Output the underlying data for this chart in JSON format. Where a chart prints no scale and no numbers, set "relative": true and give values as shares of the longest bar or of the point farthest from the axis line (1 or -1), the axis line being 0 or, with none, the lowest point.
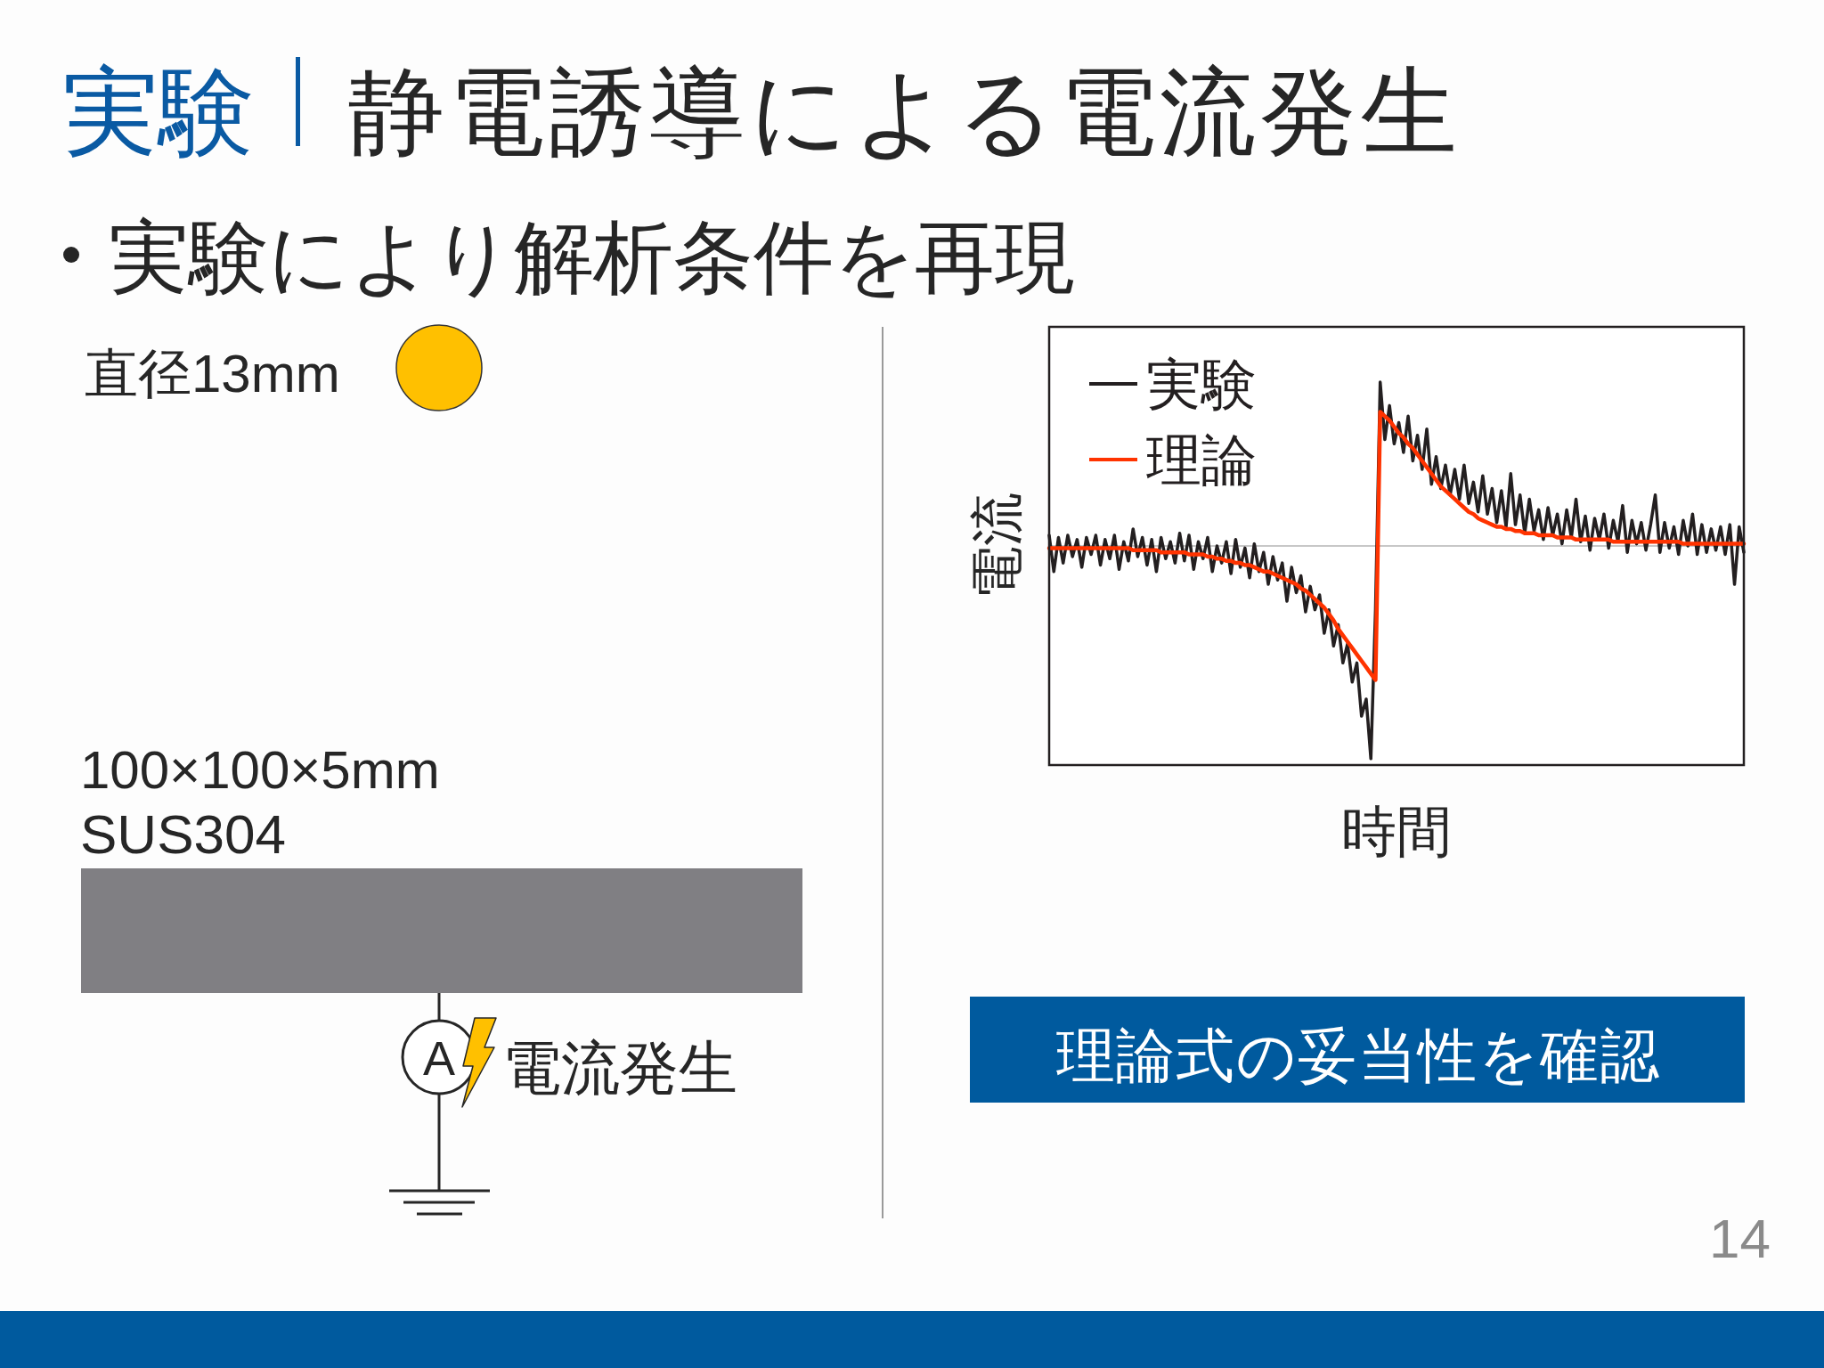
{
  "chart_data": {
    "type": "line",
    "title": "実験",
    "subtitle": "静電誘導による電流発生",
    "xlabel": "時間",
    "ylabel": "電流",
    "annotations": [
      "実験により解析条件を再現",
      "直径13mm",
      "100×100×5mm",
      "SUS304",
      "A",
      "電流発生",
      "理論式の妥当性を確認",
      "14"
    ],
    "relative": true,
    "legend": "top left",
    "categories": [
      null,
      null,
      null,
      null,
      null,
      null,
      null,
      null,
      null,
      null,
      null,
      null,
      null,
      null,
      null,
      null,
      null,
      null,
      null,
      null,
      null,
      null,
      null,
      null,
      null,
      null,
      null,
      null,
      null,
      null,
      null,
      null,
      null,
      null,
      null,
      null,
      null,
      null,
      null,
      null,
      null,
      null,
      null,
      null,
      null,
      null,
      null,
      null,
      null,
      null,
      null,
      null,
      null,
      null,
      null,
      null,
      null,
      null,
      null,
      null,
      null,
      null,
      null,
      null,
      null,
      null,
      null,
      null,
      null,
      null,
      null,
      null,
      null,
      null,
      null,
      null,
      null,
      null,
      null,
      null,
      null,
      null,
      null,
      null,
      null,
      null,
      null,
      null,
      null,
      null,
      null,
      null,
      null,
      null,
      null,
      null,
      null,
      null,
      null,
      null,
      null,
      null,
      null,
      null,
      null,
      null,
      null,
      null,
      null,
      null,
      null,
      null,
      null,
      null,
      null,
      null,
      null,
      null,
      null,
      null,
      null,
      null,
      null,
      null,
      null,
      null,
      null,
      null,
      null,
      null,
      null,
      null,
      null,
      null,
      null,
      null,
      null,
      null,
      null,
      null,
      null,
      null,
      null,
      null,
      null,
      null,
      null,
      null,
      null,
      null
    ],
    "series": [
      {
        "name": "実験",
        "color": "#231f20",
        "values": [
          0.05,
          -0.12,
          0.04,
          -0.08,
          0.05,
          -0.05,
          0.03,
          -0.1,
          0.04,
          -0.04,
          0.05,
          -0.09,
          0.03,
          -0.06,
          0.05,
          -0.11,
          0.02,
          -0.07,
          0.08,
          -0.05,
          0.04,
          -0.09,
          0.03,
          -0.12,
          0.04,
          -0.06,
          0.02,
          -0.08,
          0.06,
          -0.07,
          0.05,
          -0.11,
          0.02,
          -0.06,
          0.04,
          -0.12,
          0.0,
          -0.08,
          0.02,
          -0.13,
          0.03,
          -0.1,
          -0.01,
          -0.15,
          0.01,
          -0.12,
          -0.03,
          -0.18,
          -0.05,
          -0.16,
          -0.08,
          -0.26,
          -0.1,
          -0.22,
          -0.14,
          -0.31,
          -0.19,
          -0.3,
          -0.23,
          -0.41,
          -0.3,
          -0.47,
          -0.37,
          -0.55,
          -0.46,
          -0.64,
          -0.55,
          -0.8,
          -0.72,
          -1.0,
          -0.3,
          0.77,
          0.5,
          0.66,
          0.48,
          0.58,
          0.44,
          0.61,
          0.4,
          0.52,
          0.36,
          0.55,
          0.29,
          0.42,
          0.27,
          0.38,
          0.24,
          0.36,
          0.22,
          0.38,
          0.2,
          0.3,
          0.16,
          0.33,
          0.15,
          0.27,
          0.11,
          0.26,
          0.09,
          0.34,
          0.1,
          0.24,
          0.06,
          0.22,
          0.07,
          0.17,
          0.03,
          0.18,
          0.05,
          0.15,
          0.01,
          0.17,
          0.04,
          0.22,
          0.02,
          0.14,
          -0.02,
          0.13,
          0.03,
          0.15,
          -0.01,
          0.12,
          0.02,
          0.19,
          -0.03,
          0.12,
          0.01,
          0.11,
          -0.02,
          0.1,
          0.24,
          -0.03,
          0.11,
          -0.01,
          0.09,
          -0.04,
          0.12,
          0.0,
          0.15,
          -0.04,
          0.1,
          -0.03,
          0.08,
          -0.02,
          0.09,
          -0.04,
          0.1,
          -0.18,
          0.09,
          -0.03
        ]
      },
      {
        "name": "理論",
        "color": "#ff3300",
        "values": [
          -0.01,
          -0.01,
          -0.01,
          -0.01,
          -0.01,
          -0.01,
          -0.01,
          -0.01,
          -0.01,
          -0.01,
          -0.01,
          -0.01,
          -0.01,
          -0.01,
          -0.01,
          -0.01,
          -0.01,
          -0.01,
          -0.02,
          -0.02,
          -0.02,
          -0.02,
          -0.02,
          -0.02,
          -0.03,
          -0.03,
          -0.03,
          -0.03,
          -0.03,
          -0.03,
          -0.04,
          -0.04,
          -0.04,
          -0.04,
          -0.05,
          -0.05,
          -0.06,
          -0.06,
          -0.07,
          -0.07,
          -0.08,
          -0.08,
          -0.09,
          -0.09,
          -0.1,
          -0.11,
          -0.12,
          -0.12,
          -0.13,
          -0.14,
          -0.15,
          -0.16,
          -0.17,
          -0.18,
          -0.2,
          -0.21,
          -0.23,
          -0.25,
          -0.27,
          -0.29,
          -0.32,
          -0.35,
          -0.39,
          -0.42,
          -0.45,
          -0.48,
          -0.51,
          -0.54,
          -0.57,
          -0.6,
          -0.63,
          0.63,
          0.61,
          0.59,
          0.56,
          0.53,
          0.51,
          0.48,
          0.46,
          0.43,
          0.4,
          0.37,
          0.34,
          0.31,
          0.28,
          0.26,
          0.24,
          0.22,
          0.2,
          0.18,
          0.16,
          0.15,
          0.13,
          0.12,
          0.11,
          0.1,
          0.09,
          0.09,
          0.08,
          0.08,
          0.07,
          0.07,
          0.06,
          0.06,
          0.06,
          0.05,
          0.05,
          0.05,
          0.05,
          0.04,
          0.04,
          0.04,
          0.04,
          0.03,
          0.03,
          0.03,
          0.03,
          0.03,
          0.03,
          0.03,
          0.03,
          0.02,
          0.02,
          0.02,
          0.02,
          0.02,
          0.02,
          0.02,
          0.02,
          0.02,
          0.02,
          0.02,
          0.02,
          0.02,
          0.02,
          0.02,
          0.01,
          0.01,
          0.01,
          0.01,
          0.01,
          0.01,
          0.01,
          0.01,
          0.01,
          0.01,
          0.01,
          0.01,
          0.01,
          0.01
        ]
      }
    ]
  }
}
